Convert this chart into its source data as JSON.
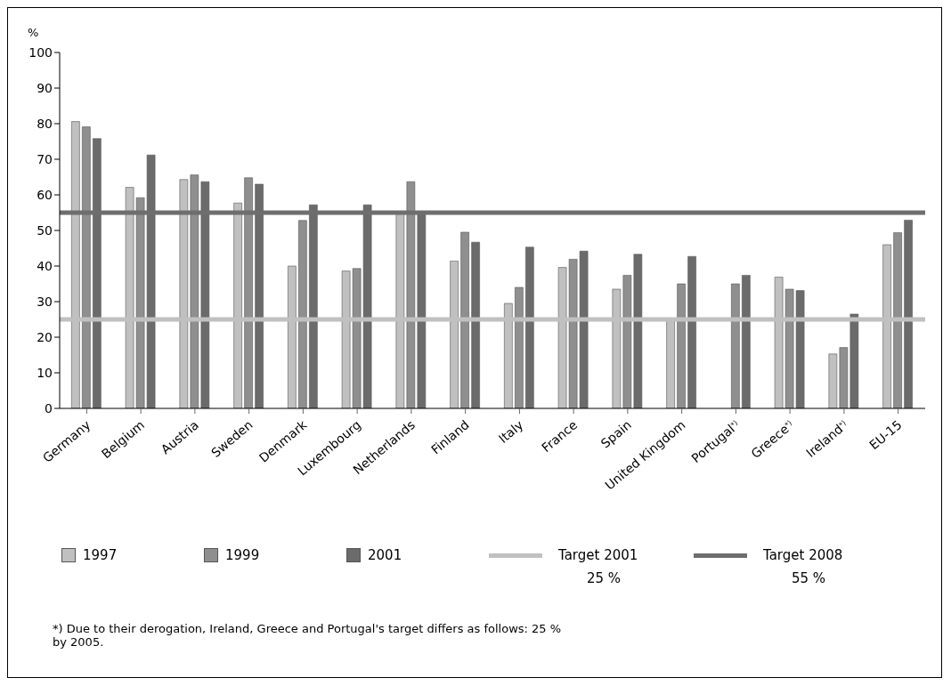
{
  "chart_data": {
    "type": "bar",
    "ylabel": "%",
    "categories": [
      "Germany",
      "Belgium",
      "Austria",
      "Sweden",
      "Denmark",
      "Luxembourg",
      "Netherlands",
      "Finland",
      "Italy",
      "France",
      "Spain",
      "United Kingdom",
      "Portugal$^{*)}$",
      "Greece$^{*)}$",
      "Ireland$^{*)}$",
      "EU-15"
    ],
    "series": [
      {
        "name": "1997",
        "color": "#c0c0c0",
        "values": [
          80.6,
          62.1,
          64.3,
          57.7,
          40.0,
          38.6,
          55,
          41.4,
          29.5,
          39.6,
          33.5,
          25,
          null,
          36.9,
          15.3,
          46.0
        ]
      },
      {
        "name": "1999",
        "color": "#8f8f8f",
        "values": [
          79.1,
          59.2,
          65.6,
          64.8,
          52.8,
          39.3,
          63.7,
          49.5,
          34.0,
          41.9,
          37.4,
          35.0,
          35.0,
          33.5,
          17.1,
          49.4
        ]
      },
      {
        "name": "2001",
        "color": "#6b6b6b",
        "values": [
          75.8,
          71.2,
          63.7,
          63.0,
          57.2,
          57.2,
          55,
          46.7,
          45.3,
          44.2,
          43.3,
          42.7,
          37.4,
          33.1,
          26.5,
          52.9
        ]
      }
    ],
    "ylim": [
      0,
      100
    ],
    "yticks": [
      0,
      10,
      20,
      30,
      40,
      50,
      60,
      70,
      80,
      90,
      100
    ],
    "grid": false,
    "legend": "bottom",
    "ref_lines": [
      {
        "axis": "y",
        "value": 25,
        "label": "Target 2001",
        "color": "#c0c0c0"
      },
      {
        "axis": "y",
        "value": 55,
        "label": "Target 2008",
        "color": "#6e6e6e"
      }
    ],
    "annotations": [
      "25 %",
      "55 %",
      "*)  Due to their derogation, Ireland, Greece and Portugal's target differs as follows: 25 % by 2005."
    ]
  }
}
